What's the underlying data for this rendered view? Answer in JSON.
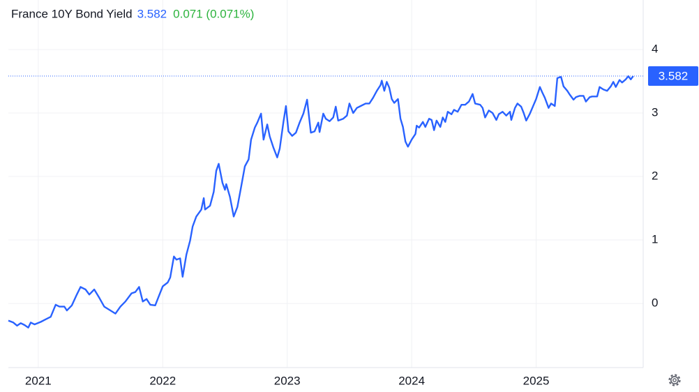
{
  "chart_data": {
    "type": "line",
    "title": "France 10Y Bond Yield",
    "change_label": "0.071 (0.071%)",
    "color": "#2962ff",
    "change_color": "#2cb33d",
    "grid": true,
    "xlim": [
      2020.76,
      2025.86
    ],
    "xticks": [
      2021,
      2022,
      2023,
      2024,
      2025
    ],
    "ylim": [
      -1.01,
      4.78
    ],
    "yticks": [
      0,
      1,
      2,
      3,
      4
    ],
    "x": [
      2020.76,
      2020.8,
      2020.83,
      2020.86,
      2020.89,
      2020.92,
      2020.94,
      2020.97,
      2021.02,
      2021.06,
      2021.1,
      2021.14,
      2021.17,
      2021.21,
      2021.23,
      2021.27,
      2021.31,
      2021.34,
      2021.38,
      2021.41,
      2021.45,
      2021.49,
      2021.53,
      2021.58,
      2021.62,
      2021.66,
      2021.7,
      2021.75,
      2021.78,
      2021.81,
      2021.84,
      2021.87,
      2021.9,
      2021.94,
      2021.97,
      2022.0,
      2022.04,
      2022.06,
      2022.09,
      2022.11,
      2022.14,
      2022.16,
      2022.19,
      2022.22,
      2022.24,
      2022.27,
      2022.31,
      2022.33,
      2022.34,
      2022.38,
      2022.41,
      2022.43,
      2022.45,
      2022.48,
      2022.5,
      2022.51,
      2022.54,
      2022.57,
      2022.6,
      2022.63,
      2022.66,
      2022.69,
      2022.71,
      2022.74,
      2022.76,
      2022.79,
      2022.81,
      2022.84,
      2022.86,
      2022.89,
      2022.92,
      2022.94,
      2022.97,
      2022.99,
      2023.01,
      2023.04,
      2023.07,
      2023.1,
      2023.13,
      2023.16,
      2023.19,
      2023.22,
      2023.25,
      2023.26,
      2023.29,
      2023.31,
      2023.34,
      2023.37,
      2023.39,
      2023.41,
      2023.45,
      2023.48,
      2023.5,
      2023.53,
      2023.56,
      2023.59,
      2023.63,
      2023.66,
      2023.69,
      2023.72,
      2023.75,
      2023.76,
      2023.78,
      2023.8,
      2023.82,
      2023.84,
      2023.86,
      2023.89,
      2023.91,
      2023.93,
      2023.95,
      2023.97,
      2024.0,
      2024.03,
      2024.04,
      2024.06,
      2024.09,
      2024.11,
      2024.14,
      2024.16,
      2024.18,
      2024.2,
      2024.23,
      2024.25,
      2024.27,
      2024.29,
      2024.32,
      2024.34,
      2024.37,
      2024.4,
      2024.43,
      2024.46,
      2024.49,
      2024.51,
      2024.55,
      2024.57,
      2024.59,
      2024.62,
      2024.65,
      2024.68,
      2024.7,
      2024.73,
      2024.76,
      2024.79,
      2024.8,
      2024.83,
      2024.85,
      2024.88,
      2024.9,
      2024.92,
      2024.95,
      2024.98,
      2025.0,
      2025.03,
      2025.05,
      2025.07,
      2025.1,
      2025.12,
      2025.15,
      2025.17,
      2025.2,
      2025.22,
      2025.25,
      2025.27,
      2025.3,
      2025.32,
      2025.35,
      2025.38,
      2025.4,
      2025.43,
      2025.45,
      2025.49,
      2025.51,
      2025.54,
      2025.57,
      2025.6,
      2025.62,
      2025.64,
      2025.67,
      2025.69,
      2025.72,
      2025.74,
      2025.76,
      2025.78
    ],
    "values": [
      -0.27,
      -0.3,
      -0.35,
      -0.31,
      -0.34,
      -0.38,
      -0.3,
      -0.33,
      -0.29,
      -0.25,
      -0.21,
      -0.02,
      -0.05,
      -0.05,
      -0.11,
      -0.03,
      0.14,
      0.26,
      0.22,
      0.14,
      0.22,
      0.09,
      -0.05,
      -0.11,
      -0.16,
      -0.05,
      0.03,
      0.16,
      0.18,
      0.26,
      0.03,
      0.07,
      -0.02,
      -0.03,
      0.12,
      0.27,
      0.33,
      0.41,
      0.74,
      0.69,
      0.71,
      0.42,
      0.77,
      0.99,
      1.21,
      1.37,
      1.48,
      1.66,
      1.48,
      1.54,
      1.76,
      2.09,
      2.2,
      1.9,
      1.79,
      1.88,
      1.68,
      1.37,
      1.52,
      1.84,
      2.16,
      2.27,
      2.58,
      2.77,
      2.85,
      2.99,
      2.58,
      2.82,
      2.63,
      2.45,
      2.3,
      2.44,
      2.86,
      3.11,
      2.71,
      2.64,
      2.69,
      2.85,
      2.99,
      3.21,
      2.69,
      2.71,
      2.85,
      2.7,
      2.99,
      2.91,
      2.87,
      2.93,
      3.1,
      2.88,
      2.91,
      2.96,
      3.15,
      3.0,
      3.08,
      3.11,
      3.15,
      3.15,
      3.24,
      3.35,
      3.44,
      3.51,
      3.35,
      3.49,
      3.4,
      3.22,
      3.16,
      3.22,
      2.91,
      2.78,
      2.55,
      2.47,
      2.58,
      2.67,
      2.8,
      2.77,
      2.86,
      2.78,
      2.91,
      2.89,
      2.73,
      2.88,
      2.78,
      2.93,
      2.86,
      3.02,
      2.98,
      3.05,
      3.02,
      3.13,
      3.13,
      3.18,
      3.3,
      3.15,
      3.13,
      3.08,
      2.93,
      3.04,
      3.0,
      2.89,
      2.98,
      3.02,
      2.96,
      3.02,
      2.89,
      3.08,
      3.15,
      3.1,
      3.0,
      2.88,
      2.99,
      3.13,
      3.22,
      3.41,
      3.32,
      3.24,
      3.08,
      3.15,
      3.11,
      3.55,
      3.57,
      3.42,
      3.35,
      3.29,
      3.21,
      3.25,
      3.27,
      3.27,
      3.18,
      3.25,
      3.26,
      3.26,
      3.41,
      3.37,
      3.35,
      3.42,
      3.49,
      3.41,
      3.52,
      3.48,
      3.53,
      3.58,
      3.53,
      3.582
    ]
  }
}
